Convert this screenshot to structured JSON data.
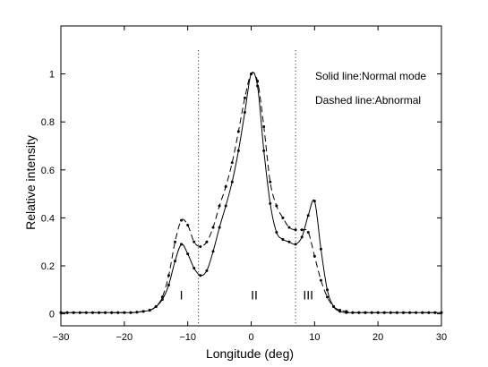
{
  "chart_data": {
    "type": "line",
    "xlabel": "Longitude (deg)",
    "ylabel": "Relative intensity",
    "xlim": [
      -30,
      30
    ],
    "ylim": [
      -0.05,
      1.2
    ],
    "xticks": [
      -30,
      -20,
      -10,
      0,
      10,
      20,
      30
    ],
    "xtick_labels": [
      "−30",
      "−20",
      "−10",
      "0",
      "10",
      "20",
      "30"
    ],
    "yticks": [
      0,
      0.2,
      0.4,
      0.6,
      0.8,
      1
    ],
    "ytick_labels": [
      "0",
      "0.2",
      "0.4",
      "0.6",
      "0.8",
      "1"
    ],
    "grid": false,
    "annotations": [
      "Solid line:Normal mode",
      "Dashed line:Abnormal"
    ],
    "region_labels": [
      {
        "text": "I",
        "x": -11,
        "y": 0.06
      },
      {
        "text": "II",
        "x": 0.5,
        "y": 0.06
      },
      {
        "text": "III",
        "x": 9,
        "y": 0.06
      }
    ],
    "vlines": [
      -8.3,
      7
    ],
    "series": [
      {
        "style": "solid",
        "color": "#000000",
        "x": [
          -30,
          -29,
          -28,
          -27,
          -26,
          -25,
          -24,
          -23,
          -22,
          -21,
          -20,
          -19,
          -18,
          -17,
          -16,
          -15,
          -14,
          -13,
          -12,
          -11,
          -10,
          -9,
          -8,
          -7,
          -6,
          -5,
          -4,
          -3,
          -2,
          -1,
          0,
          1,
          2,
          3,
          4,
          5,
          6,
          7,
          8,
          9,
          10,
          11,
          12,
          13,
          14,
          15,
          16,
          17,
          18,
          19,
          20,
          21,
          22,
          23,
          24,
          25,
          26,
          27,
          28,
          29,
          30
        ],
        "y": [
          0.005,
          0.005,
          0.005,
          0.005,
          0.005,
          0.005,
          0.005,
          0.005,
          0.005,
          0.005,
          0.005,
          0.005,
          0.007,
          0.01,
          0.015,
          0.03,
          0.06,
          0.12,
          0.22,
          0.29,
          0.25,
          0.19,
          0.16,
          0.18,
          0.26,
          0.36,
          0.45,
          0.55,
          0.68,
          0.84,
          1.0,
          0.95,
          0.68,
          0.46,
          0.34,
          0.31,
          0.3,
          0.29,
          0.32,
          0.41,
          0.47,
          0.27,
          0.1,
          0.03,
          0.01,
          0.005,
          0.005,
          0.005,
          0.005,
          0.005,
          0.005,
          0.005,
          0.005,
          0.005,
          0.005,
          0.005,
          0.005,
          0.005,
          0.005,
          0.005,
          0.005
        ]
      },
      {
        "style": "dashed",
        "color": "#000000",
        "x": [
          -30,
          -29,
          -28,
          -27,
          -26,
          -25,
          -24,
          -23,
          -22,
          -21,
          -20,
          -19,
          -18,
          -17,
          -16,
          -15,
          -14,
          -13,
          -12,
          -11,
          -10,
          -9,
          -8,
          -7,
          -6,
          -5,
          -4,
          -3,
          -2,
          -1,
          0,
          1,
          2,
          3,
          4,
          5,
          6,
          7,
          8,
          9,
          10,
          11,
          12,
          13,
          14,
          15,
          16,
          17,
          18,
          19,
          20,
          21,
          22,
          23,
          24,
          25,
          26,
          27,
          28,
          29,
          30
        ],
        "y": [
          0.005,
          0.005,
          0.005,
          0.005,
          0.005,
          0.005,
          0.005,
          0.005,
          0.005,
          0.005,
          0.005,
          0.005,
          0.007,
          0.01,
          0.015,
          0.03,
          0.07,
          0.16,
          0.3,
          0.39,
          0.37,
          0.3,
          0.28,
          0.3,
          0.36,
          0.45,
          0.53,
          0.63,
          0.76,
          0.9,
          1.0,
          0.97,
          0.78,
          0.55,
          0.45,
          0.4,
          0.36,
          0.35,
          0.35,
          0.34,
          0.24,
          0.14,
          0.07,
          0.03,
          0.015,
          0.01,
          0.005,
          0.005,
          0.005,
          0.005,
          0.005,
          0.005,
          0.005,
          0.005,
          0.005,
          0.005,
          0.005,
          0.005,
          0.005,
          0.005,
          0.005
        ]
      }
    ]
  }
}
